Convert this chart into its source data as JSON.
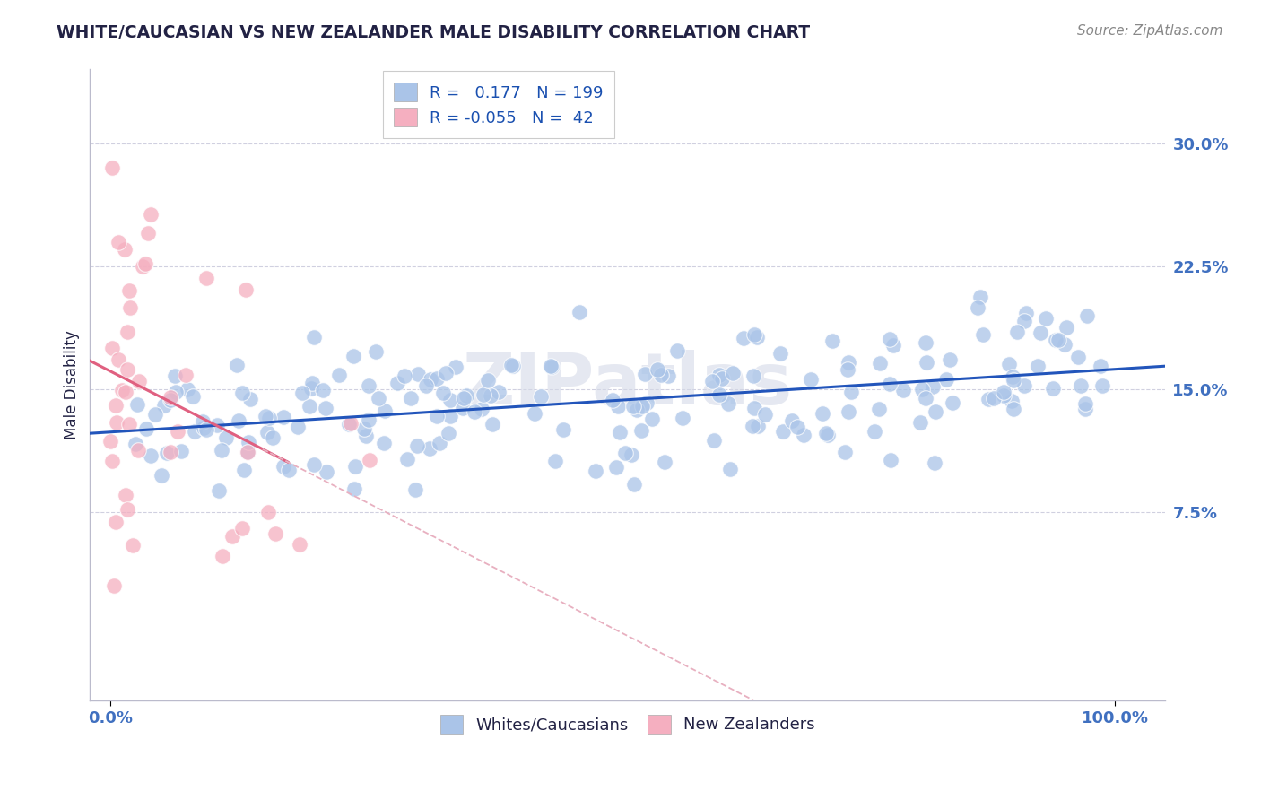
{
  "title": "WHITE/CAUCASIAN VS NEW ZEALANDER MALE DISABILITY CORRELATION CHART",
  "source": "Source: ZipAtlas.com",
  "ylabel": "Male Disability",
  "watermark": "ZIPatlas",
  "blue_R": 0.177,
  "blue_N": 199,
  "pink_R": -0.055,
  "pink_N": 42,
  "blue_color": "#aac4e8",
  "pink_color": "#f5afc0",
  "blue_line_color": "#2255bb",
  "pink_line_color": "#e06080",
  "pink_dash_color": "#e8b0c0",
  "title_color": "#222244",
  "axis_label_color": "#222244",
  "tick_color": "#4070c0",
  "source_color": "#888888",
  "legend_R_color": "#1a50b0",
  "grid_color": "#d0d0e0",
  "background_color": "#ffffff",
  "ylim_min": -0.04,
  "ylim_max": 0.345,
  "xlim_min": -0.02,
  "xlim_max": 1.05,
  "ytick_vals": [
    0.075,
    0.15,
    0.225,
    0.3
  ],
  "ytick_labels": [
    "7.5%",
    "15.0%",
    "22.5%",
    "30.0%"
  ],
  "xtick_vals": [
    0.0,
    1.0
  ],
  "xtick_labels": [
    "0.0%",
    "100.0%"
  ]
}
